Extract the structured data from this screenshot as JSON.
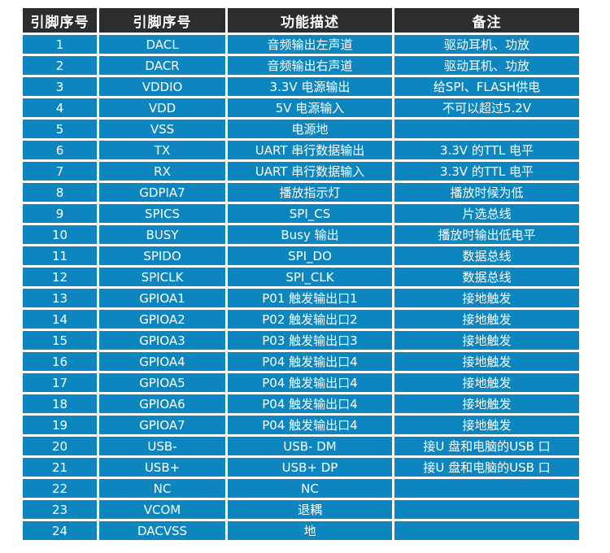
{
  "colors": {
    "header_bg": "#2d2d2d",
    "row_bg": "#0d86c0",
    "gap": "#ffffff",
    "text": "#ffffff"
  },
  "table": {
    "columns": [
      "引脚序号",
      "引脚序号",
      "功能描述",
      "备注"
    ],
    "rows": [
      [
        "1",
        "DACL",
        "音频输出左声道",
        "驱动耳机、功放"
      ],
      [
        "2",
        "DACR",
        "音频输出右声道",
        "驱动耳机、功放"
      ],
      [
        "3",
        "VDDIO",
        "3.3V 电源输出",
        "给SPI、FLASH供电"
      ],
      [
        "4",
        "VDD",
        "5V 电源输入",
        "不可以超过5.2V"
      ],
      [
        "5",
        "VSS",
        "电源地",
        ""
      ],
      [
        "6",
        "TX",
        "UART 串行数据输出",
        "3.3V 的TTL 电平"
      ],
      [
        "7",
        "RX",
        "UART 串行数据输入",
        "3.3V 的TTL 电平"
      ],
      [
        "8",
        "GDPIA7",
        "播放指示灯",
        "播放时候为低"
      ],
      [
        "9",
        "SPICS",
        "SPI_CS",
        "片选总线"
      ],
      [
        "10",
        "BUSY",
        "Busy 输出",
        "播放时输出低电平"
      ],
      [
        "11",
        "SPIDO",
        "SPI_DO",
        "数据总线"
      ],
      [
        "12",
        "SPICLK",
        "SPI_CLK",
        "数据总线"
      ],
      [
        "13",
        "GPIOA1",
        "P01 触发输出口1",
        "接地触发"
      ],
      [
        "14",
        "GPIOA2",
        "P02 触发输出口2",
        "接地触发"
      ],
      [
        "15",
        "GPIOA3",
        "P03 触发输出口3",
        "接地触发"
      ],
      [
        "16",
        "GPIOA4",
        "P04 触发输出口4",
        "接地触发"
      ],
      [
        "17",
        "GPIOA5",
        "P04 触发输出口4",
        "接地触发"
      ],
      [
        "18",
        "GPIOA6",
        "P04 触发输出口4",
        "接地触发"
      ],
      [
        "19",
        "GPIOA7",
        "P04 触发输出口4",
        "接地触发"
      ],
      [
        "20",
        "USB-",
        "USB- DM",
        "接U 盘和电脑的USB 口"
      ],
      [
        "21",
        "USB+",
        "USB+ DP",
        "接U 盘和电脑的USB 口"
      ],
      [
        "22",
        "NC",
        "NC",
        ""
      ],
      [
        "23",
        "VCOM",
        "退耦",
        ""
      ],
      [
        "24",
        "DACVSS",
        "地",
        ""
      ]
    ]
  }
}
